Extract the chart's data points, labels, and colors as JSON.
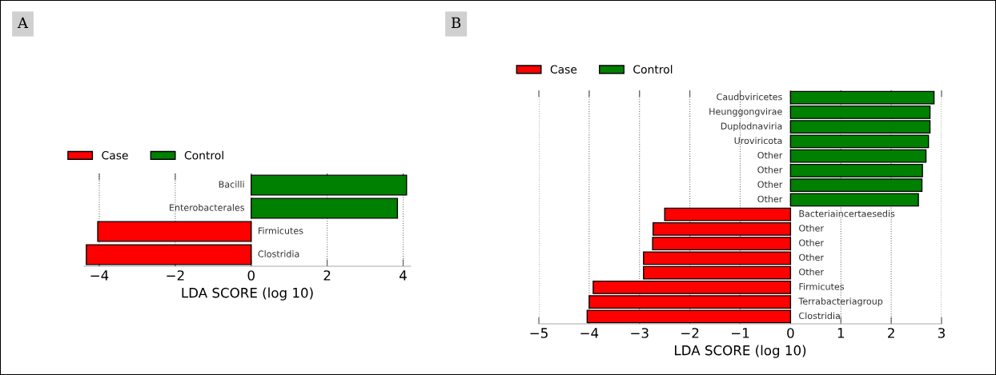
{
  "chart_data": [
    {
      "type": "bar",
      "orientation": "horizontal",
      "annotations": [
        "A"
      ],
      "xlabel": "LDA SCORE (log 10)",
      "categories": [
        "Bacilli",
        "Enterobacterales",
        "Firmicutes",
        "Clostridia"
      ],
      "series": [
        {
          "name": "Case",
          "color": "#ff0000",
          "values": [
            null,
            null,
            -4.04,
            -4.34
          ]
        },
        {
          "name": "Control",
          "color": "#008000",
          "values": [
            4.09,
            3.85,
            null,
            null
          ]
        }
      ],
      "xlim": [
        -4.4,
        4.2
      ],
      "xticks": [
        {
          "value": -4,
          "label": "−4"
        },
        {
          "value": -2,
          "label": "−2"
        },
        0,
        2,
        4
      ],
      "grid": "x",
      "legend": "top left",
      "tick_labels": "x"
    },
    {
      "type": "bar",
      "orientation": "horizontal",
      "annotations": [
        "B"
      ],
      "xlabel": "LDA SCORE (log 10)",
      "categories": [
        "Caudoviricetes",
        "Heunggongvirae",
        "Duplodnaviria",
        "Uroviricota",
        "Other",
        "Other",
        "Other",
        "Other",
        "Bacteriaincertaesedis",
        "Other",
        "Other",
        "Other",
        "Other",
        "Firmicutes",
        "Terrabacteriagroup",
        "Clostridia"
      ],
      "series": [
        {
          "name": "Case",
          "color": "#ff0000",
          "values": [
            null,
            null,
            null,
            null,
            null,
            null,
            null,
            null,
            -2.5,
            -2.73,
            -2.74,
            -2.92,
            -2.92,
            -3.92,
            -4.0,
            -4.04
          ]
        },
        {
          "name": "Control",
          "color": "#008000",
          "values": [
            2.85,
            2.77,
            2.77,
            2.74,
            2.69,
            2.62,
            2.61,
            2.54,
            null,
            null,
            null,
            null,
            null,
            null,
            null,
            null
          ]
        }
      ],
      "xlim": [
        -5,
        3
      ],
      "xticks": [
        {
          "value": -5,
          "label": "−5"
        },
        {
          "value": -4,
          "label": "−4"
        },
        {
          "value": -3,
          "label": "−3"
        },
        {
          "value": -2,
          "label": "−2"
        },
        {
          "value": -1,
          "label": "−1"
        },
        0,
        1,
        2,
        3
      ],
      "grid": "x",
      "legend": "top left",
      "tick_labels": "x"
    }
  ]
}
